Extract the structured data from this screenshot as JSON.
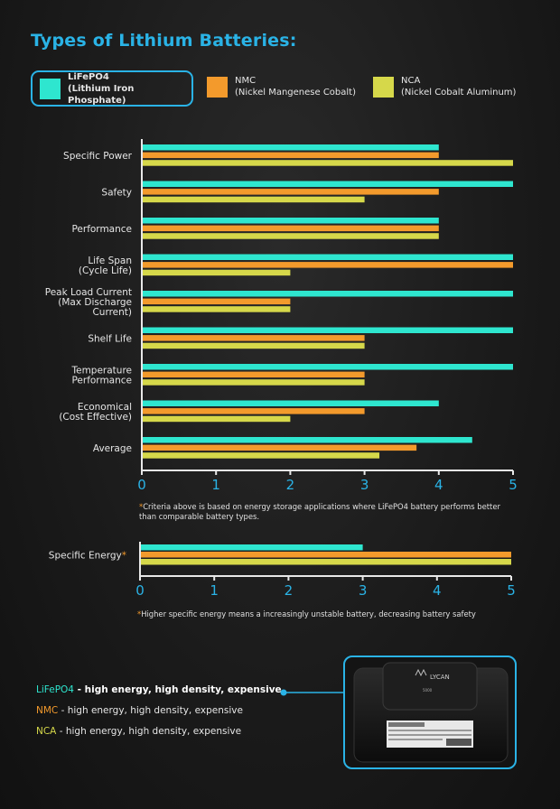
{
  "title": "Types of Lithium Batteries:",
  "legend": [
    {
      "line1": "LiFePO4",
      "line2": "(Lithium Iron Phosphate)",
      "color": "#2ee6cf"
    },
    {
      "line1": "NMC",
      "line2": "(Nickel Mangenese Cobalt)",
      "color": "#f39a2c"
    },
    {
      "line1": "NCA",
      "line2": "(Nickel Cobalt Aluminum)",
      "color": "#d6d84a"
    }
  ],
  "chart_data": [
    {
      "type": "bar",
      "orientation": "horizontal",
      "categories": [
        [
          "Specific Power"
        ],
        [
          "Safety"
        ],
        [
          "Performance"
        ],
        [
          "Life Span",
          "(Cycle Life)"
        ],
        [
          "Peak Load Current",
          "(Max Discharge",
          "Current)"
        ],
        [
          "Shelf Life"
        ],
        [
          "Temperature",
          "Performance"
        ],
        [
          "Economical",
          "(Cost Effective)"
        ],
        [
          "Average"
        ]
      ],
      "series": [
        {
          "name": "LiFePO4",
          "color": "#2ee6cf",
          "values": [
            4,
            5,
            4,
            5,
            5,
            5,
            5,
            4,
            4.45
          ]
        },
        {
          "name": "NMC",
          "color": "#f39a2c",
          "values": [
            4,
            4,
            4,
            5,
            2,
            3,
            3,
            3,
            3.7
          ]
        },
        {
          "name": "NCA",
          "color": "#d6d84a",
          "values": [
            5,
            3,
            4,
            2,
            2,
            3,
            3,
            2,
            3.2
          ]
        }
      ],
      "xlim": [
        0,
        5
      ],
      "xticks": [
        "0",
        "1",
        "2",
        "3",
        "4",
        "5"
      ],
      "tick_color": "#2ab3e6"
    },
    {
      "type": "bar",
      "orientation": "horizontal",
      "categories": [
        [
          "Specific Energy"
        ]
      ],
      "category_marker": "*",
      "series": [
        {
          "name": "LiFePO4",
          "color": "#2ee6cf",
          "values": [
            3
          ]
        },
        {
          "name": "NMC",
          "color": "#f39a2c",
          "values": [
            5
          ]
        },
        {
          "name": "NCA",
          "color": "#d6d84a",
          "values": [
            5
          ]
        }
      ],
      "xlim": [
        0,
        5
      ],
      "xticks": [
        "0",
        "1",
        "2",
        "3",
        "4",
        "5"
      ],
      "tick_color": "#2ab3e6"
    }
  ],
  "notes": {
    "note1": "Criteria above is based on energy storage applications where LiFePO4 battery performs better than comparable battery types.",
    "note2": "Higher specific energy means a increasingly unstable battery, decreasing battery safety",
    "star": "*"
  },
  "summary": [
    {
      "name": "LiFePO4",
      "desc": " - high energy, high density, expensive",
      "color": "#2ee6cf"
    },
    {
      "name": "NMC",
      "desc": " - high energy, high density, expensive",
      "color": "#f39a2c"
    },
    {
      "name": "NCA",
      "desc": " - high energy, high density, expensive",
      "color": "#d6d84a"
    }
  ],
  "product": {
    "brand": "LYCAN",
    "model": "5000"
  },
  "colors": {
    "accent": "#2ab3e6"
  }
}
